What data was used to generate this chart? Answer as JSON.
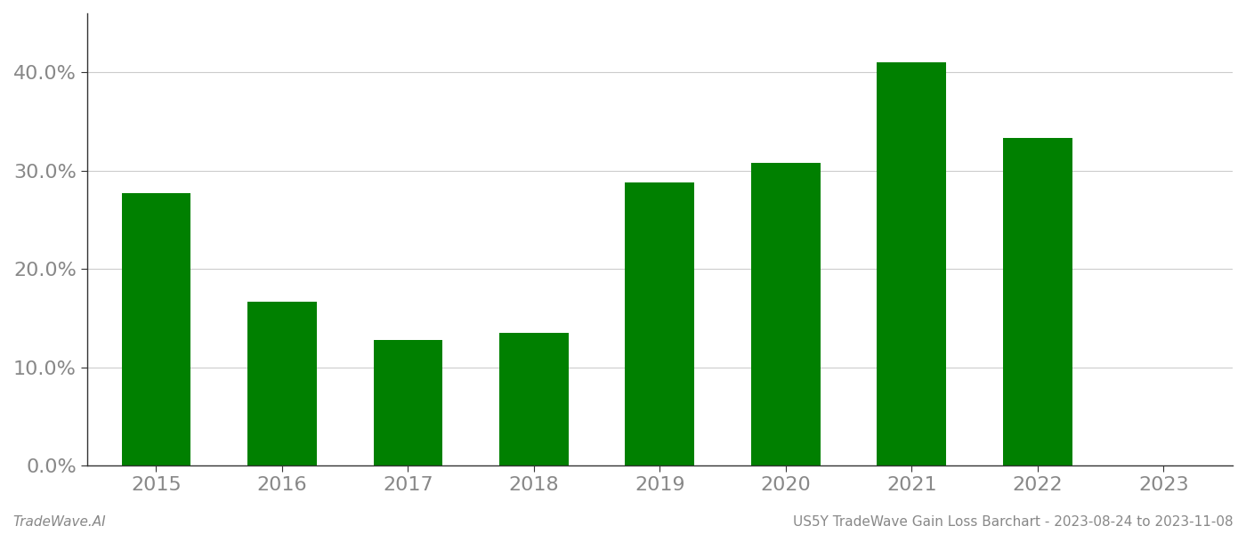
{
  "categories": [
    "2015",
    "2016",
    "2017",
    "2018",
    "2019",
    "2020",
    "2021",
    "2022",
    "2023"
  ],
  "values": [
    0.277,
    0.167,
    0.128,
    0.135,
    0.288,
    0.308,
    0.41,
    0.333,
    null
  ],
  "bar_color": "#008000",
  "background_color": "#ffffff",
  "grid_color": "#cccccc",
  "axis_color": "#999999",
  "tick_label_color": "#888888",
  "ylim": [
    0,
    0.46
  ],
  "yticks": [
    0.0,
    0.1,
    0.2,
    0.3,
    0.4
  ],
  "footer_left": "TradeWave.AI",
  "footer_right": "US5Y TradeWave Gain Loss Barchart - 2023-08-24 to 2023-11-08",
  "footer_fontsize": 11,
  "tick_fontsize": 16,
  "bar_width": 0.55
}
